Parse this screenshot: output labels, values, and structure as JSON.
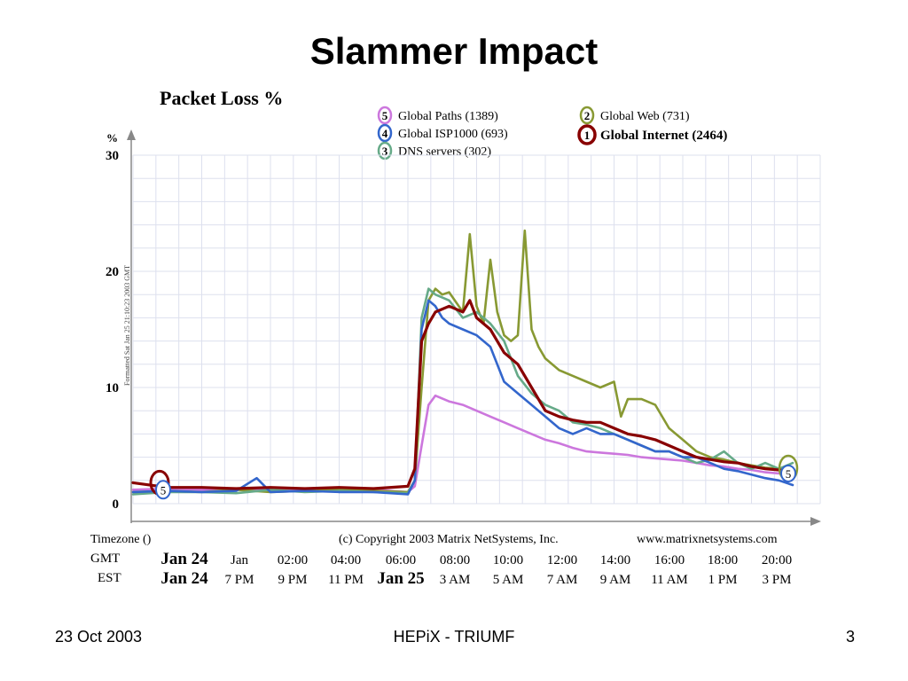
{
  "slide": {
    "title": "Slammer Impact",
    "footer_left": "23 Oct 2003",
    "footer_center": "HEPiX - TRIUMF",
    "footer_right": "3"
  },
  "chart_data": {
    "type": "line",
    "title": "Packet Loss %",
    "ylabel": "%",
    "ylim": [
      0,
      30
    ],
    "yticks": [
      0,
      10,
      20,
      30
    ],
    "xlim": [
      0,
      100
    ],
    "grid": true,
    "legend_position": "top-center",
    "side_note": "Formatted Sat Jan 25 21:10:23 2003 GMT",
    "x_axis": {
      "timezone_label": "Timezone ()",
      "copyright": "(c) Copyright 2003 Matrix NetSystems, Inc.",
      "website": "www.matrixnetsystems.com",
      "gmt_label": "GMT",
      "est_label": "EST",
      "gmt_ticks": [
        "Jan 24",
        "Jan",
        "02:00",
        "04:00",
        "06:00",
        "08:00",
        "10:00",
        "12:00",
        "14:00",
        "16:00",
        "18:00",
        "20:00"
      ],
      "est_ticks": [
        "Jan 24",
        "7 PM",
        "9 PM",
        "11 PM",
        "Jan 25",
        "3 AM",
        "5 AM",
        "7 AM",
        "9 AM",
        "11 AM",
        "1 PM",
        "3 PM"
      ]
    },
    "series": [
      {
        "name": "Global Paths (1389)",
        "badge": "5",
        "color": "#cc77dd",
        "x": [
          0,
          5,
          10,
          15,
          20,
          25,
          30,
          35,
          40,
          41,
          42,
          43,
          44,
          46,
          48,
          50,
          52,
          54,
          56,
          58,
          60,
          62,
          64,
          66,
          68,
          70,
          72,
          74,
          76,
          78,
          80,
          82,
          84,
          86,
          88,
          90,
          92,
          94,
          96
        ],
        "y": [
          1.2,
          1.3,
          1.2,
          1.3,
          1.2,
          1.2,
          1.3,
          1.2,
          1.0,
          1.5,
          5,
          8.5,
          9.3,
          8.8,
          8.5,
          8.0,
          7.5,
          7.0,
          6.5,
          6.0,
          5.5,
          5.2,
          4.8,
          4.5,
          4.4,
          4.3,
          4.2,
          4.0,
          3.9,
          3.8,
          3.7,
          3.5,
          3.3,
          3.2,
          3.0,
          2.9,
          2.7,
          2.6,
          2.6
        ]
      },
      {
        "name": "Global Web (731)",
        "badge": "2",
        "color": "#889933",
        "x": [
          0,
          5,
          10,
          15,
          20,
          25,
          30,
          35,
          40,
          41,
          42,
          43,
          44,
          45,
          46,
          48,
          49,
          50,
          51,
          52,
          53,
          54,
          55,
          56,
          57,
          58,
          59,
          60,
          62,
          64,
          66,
          68,
          70,
          71,
          72,
          74,
          76,
          78,
          80,
          82,
          84,
          86,
          88,
          90,
          92,
          94,
          96
        ],
        "y": [
          1.0,
          1.1,
          1.0,
          1.2,
          1.0,
          1.1,
          1.2,
          1.1,
          1.0,
          2,
          10,
          17.5,
          18.5,
          18.0,
          18.2,
          16.5,
          23.2,
          17,
          15.5,
          21,
          16.5,
          14.5,
          14.0,
          14.5,
          23.5,
          15,
          13.5,
          12.5,
          11.5,
          11.0,
          10.5,
          10.0,
          10.5,
          7.5,
          9.0,
          9.0,
          8.5,
          6.5,
          5.5,
          4.5,
          4.0,
          3.8,
          3.5,
          3.3,
          3.1,
          3.0,
          2.9
        ]
      },
      {
        "name": "Global ISP1000 (693)",
        "badge": "4",
        "color": "#3366cc",
        "x": [
          0,
          5,
          10,
          15,
          18,
          20,
          25,
          30,
          35,
          40,
          41,
          42,
          43,
          44,
          45,
          46,
          48,
          50,
          52,
          54,
          56,
          58,
          60,
          62,
          64,
          66,
          68,
          70,
          72,
          74,
          76,
          78,
          80,
          82,
          84,
          86,
          88,
          90,
          92,
          94,
          96
        ],
        "y": [
          1.0,
          1.1,
          1.0,
          1.1,
          2.2,
          1.0,
          1.1,
          1.0,
          1.0,
          0.8,
          2,
          15,
          17.5,
          17,
          16,
          15.5,
          15,
          14.5,
          13.5,
          10.5,
          9.5,
          8.5,
          7.5,
          6.5,
          6.0,
          6.5,
          6.0,
          6.0,
          5.5,
          5.0,
          4.5,
          4.5,
          4.0,
          4.0,
          3.5,
          3.0,
          2.8,
          2.5,
          2.2,
          2.0,
          1.6
        ]
      },
      {
        "name": "Global Internet (2464)",
        "badge": "1",
        "color": "#880000",
        "x": [
          0,
          5,
          10,
          15,
          20,
          25,
          30,
          35,
          40,
          41,
          42,
          43,
          44,
          46,
          48,
          49,
          50,
          52,
          54,
          56,
          58,
          60,
          62,
          64,
          66,
          68,
          70,
          72,
          74,
          76,
          78,
          80,
          82,
          84,
          86,
          88,
          90,
          92,
          94,
          96
        ],
        "y": [
          1.8,
          1.4,
          1.4,
          1.3,
          1.4,
          1.3,
          1.4,
          1.3,
          1.5,
          3,
          14,
          15.5,
          16.5,
          17,
          16.5,
          17.5,
          16.0,
          15,
          13,
          12,
          10.0,
          8.0,
          7.5,
          7.2,
          7.0,
          7.0,
          6.5,
          6.0,
          5.8,
          5.5,
          5.0,
          4.5,
          4.0,
          3.8,
          3.6,
          3.5,
          3.2,
          3.0,
          2.9,
          2.8
        ]
      },
      {
        "name": "DNS servers (302)",
        "badge": "3",
        "color": "#66aa88",
        "x": [
          0,
          5,
          10,
          15,
          20,
          25,
          30,
          35,
          40,
          41,
          42,
          43,
          44,
          46,
          48,
          50,
          52,
          54,
          56,
          58,
          60,
          62,
          64,
          66,
          68,
          70,
          72,
          74,
          76,
          78,
          80,
          82,
          84,
          86,
          88,
          90,
          92,
          94,
          96
        ],
        "y": [
          0.8,
          1.0,
          1.0,
          0.9,
          1.2,
          1.0,
          1.1,
          1.0,
          0.9,
          2,
          16,
          18.5,
          18.0,
          17.5,
          16.0,
          16.5,
          15.5,
          14.0,
          11.0,
          9.5,
          8.5,
          8.0,
          7.0,
          6.8,
          6.5,
          6.0,
          5.5,
          5.0,
          4.5,
          4.5,
          4.0,
          3.5,
          3.8,
          4.5,
          3.5,
          3.0,
          3.5,
          3.0,
          3.5
        ]
      }
    ]
  }
}
